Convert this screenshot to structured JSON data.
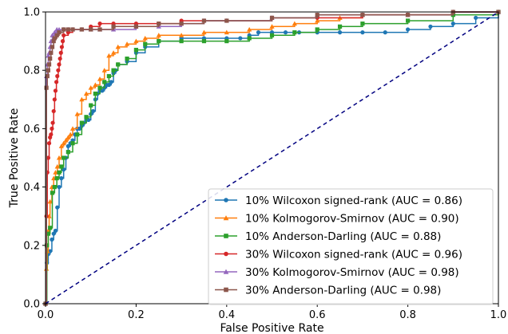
{
  "chart_data": {
    "type": "line",
    "title": "",
    "xlabel": "False Positive Rate",
    "ylabel": "True Positive Rate",
    "xlim": [
      0,
      1
    ],
    "ylim": [
      0,
      1
    ],
    "xticks": [
      "0.0",
      "0.2",
      "0.4",
      "0.6",
      "0.8",
      "1.0"
    ],
    "yticks": [
      "0.0",
      "0.2",
      "0.4",
      "0.6",
      "0.8",
      "1.0"
    ],
    "grid": false,
    "legend_position": "lower-right",
    "diagonal": {
      "x": [
        0,
        1
      ],
      "y": [
        0,
        1
      ],
      "color": "#000080",
      "style": "dashed"
    },
    "series": [
      {
        "name": "10% Wilcoxon signed-rank (AUC = 0.86)",
        "color": "#1f77b4",
        "marker": "circle",
        "x": [
          0,
          0.003,
          0.006,
          0.01,
          0.014,
          0.018,
          0.022,
          0.026,
          0.03,
          0.035,
          0.04,
          0.045,
          0.05,
          0.055,
          0.06,
          0.065,
          0.07,
          0.075,
          0.08,
          0.085,
          0.09,
          0.095,
          0.1,
          0.105,
          0.11,
          0.115,
          0.12,
          0.125,
          0.13,
          0.135,
          0.14,
          0.145,
          0.15,
          0.155,
          0.16,
          0.18,
          0.2,
          0.22,
          0.25,
          0.3,
          0.35,
          0.4,
          0.43,
          0.45,
          0.47,
          0.5,
          0.53,
          0.56,
          0.6,
          0.65,
          0.7,
          0.75,
          0.8,
          0.85,
          0.9,
          0.95,
          1.0
        ],
        "y": [
          0,
          0.14,
          0.17,
          0.18,
          0.22,
          0.24,
          0.25,
          0.33,
          0.4,
          0.43,
          0.46,
          0.5,
          0.54,
          0.55,
          0.56,
          0.58,
          0.6,
          0.6,
          0.61,
          0.62,
          0.63,
          0.63,
          0.65,
          0.66,
          0.7,
          0.72,
          0.73,
          0.73,
          0.74,
          0.75,
          0.75,
          0.76,
          0.79,
          0.8,
          0.82,
          0.83,
          0.86,
          0.88,
          0.9,
          0.91,
          0.91,
          0.91,
          0.91,
          0.92,
          0.93,
          0.93,
          0.93,
          0.93,
          0.93,
          0.93,
          0.93,
          0.93,
          0.94,
          0.95,
          0.96,
          0.98,
          1.0
        ]
      },
      {
        "name": "10% Kolmogorov-Smirnov (AUC = 0.90)",
        "color": "#ff7f0e",
        "marker": "triangle",
        "x": [
          0,
          0.002,
          0.004,
          0.006,
          0.008,
          0.01,
          0.014,
          0.018,
          0.022,
          0.026,
          0.03,
          0.035,
          0.04,
          0.045,
          0.05,
          0.055,
          0.06,
          0.07,
          0.08,
          0.09,
          0.1,
          0.11,
          0.12,
          0.13,
          0.14,
          0.15,
          0.16,
          0.18,
          0.2,
          0.22,
          0.25,
          0.3,
          0.35,
          0.4,
          0.45,
          0.5,
          0.55,
          0.6,
          0.65,
          0.7,
          0.8,
          0.9,
          1.0
        ],
        "y": [
          0,
          0.12,
          0.18,
          0.25,
          0.3,
          0.35,
          0.4,
          0.43,
          0.45,
          0.47,
          0.5,
          0.54,
          0.55,
          0.56,
          0.57,
          0.58,
          0.6,
          0.65,
          0.7,
          0.72,
          0.74,
          0.75,
          0.77,
          0.8,
          0.85,
          0.86,
          0.88,
          0.89,
          0.9,
          0.91,
          0.92,
          0.92,
          0.93,
          0.93,
          0.94,
          0.95,
          0.96,
          0.97,
          0.98,
          0.99,
          0.99,
          1.0,
          1.0
        ]
      },
      {
        "name": "10% Anderson-Darling (AUC = 0.88)",
        "color": "#2ca02c",
        "marker": "square",
        "x": [
          0,
          0.003,
          0.006,
          0.01,
          0.015,
          0.02,
          0.025,
          0.03,
          0.035,
          0.04,
          0.05,
          0.06,
          0.07,
          0.08,
          0.09,
          0.1,
          0.11,
          0.12,
          0.13,
          0.14,
          0.15,
          0.16,
          0.18,
          0.2,
          0.22,
          0.25,
          0.3,
          0.35,
          0.4,
          0.45,
          0.5,
          0.55,
          0.6,
          0.65,
          0.7,
          0.8,
          0.9,
          1.0
        ],
        "y": [
          0,
          0.2,
          0.24,
          0.26,
          0.38,
          0.4,
          0.43,
          0.45,
          0.47,
          0.5,
          0.52,
          0.55,
          0.58,
          0.62,
          0.64,
          0.68,
          0.72,
          0.74,
          0.76,
          0.78,
          0.8,
          0.82,
          0.84,
          0.87,
          0.89,
          0.9,
          0.9,
          0.9,
          0.9,
          0.91,
          0.92,
          0.93,
          0.94,
          0.95,
          0.96,
          0.97,
          0.99,
          1.0
        ]
      },
      {
        "name": "30% Wilcoxon signed-rank (AUC = 0.96)",
        "color": "#d62728",
        "marker": "circle",
        "x": [
          0,
          0.002,
          0.004,
          0.006,
          0.008,
          0.01,
          0.012,
          0.014,
          0.016,
          0.018,
          0.02,
          0.022,
          0.024,
          0.026,
          0.028,
          0.03,
          0.032,
          0.034,
          0.036,
          0.038,
          0.04,
          0.05,
          0.06,
          0.08,
          0.1,
          0.12,
          0.15,
          0.2,
          0.25,
          0.3,
          0.4,
          0.5,
          0.6,
          0.7,
          0.8,
          0.9,
          1.0
        ],
        "y": [
          0,
          0.3,
          0.45,
          0.5,
          0.55,
          0.57,
          0.58,
          0.6,
          0.62,
          0.66,
          0.7,
          0.73,
          0.76,
          0.78,
          0.8,
          0.82,
          0.84,
          0.86,
          0.88,
          0.9,
          0.92,
          0.93,
          0.94,
          0.94,
          0.95,
          0.96,
          0.96,
          0.96,
          0.96,
          0.97,
          0.97,
          0.98,
          0.98,
          0.99,
          0.99,
          1.0,
          1.0
        ]
      },
      {
        "name": "30% Kolmogorov-Smirnov (AUC = 0.98)",
        "color": "#9467bd",
        "marker": "triangle",
        "x": [
          0,
          0.002,
          0.004,
          0.006,
          0.008,
          0.01,
          0.012,
          0.015,
          0.02,
          0.025,
          0.03,
          0.04,
          0.05,
          0.06,
          0.08,
          0.1,
          0.12,
          0.15,
          0.2,
          0.25,
          0.3,
          0.35,
          0.4,
          0.5,
          0.6,
          0.7,
          0.8,
          0.9,
          1.0
        ],
        "y": [
          0,
          0.78,
          0.82,
          0.85,
          0.86,
          0.88,
          0.9,
          0.92,
          0.93,
          0.94,
          0.94,
          0.94,
          0.94,
          0.94,
          0.94,
          0.94,
          0.94,
          0.94,
          0.95,
          0.95,
          0.96,
          0.97,
          0.97,
          0.98,
          0.99,
          0.99,
          0.99,
          1.0,
          1.0
        ]
      },
      {
        "name": "30% Anderson-Darling (AUC = 0.98)",
        "color": "#8c564b",
        "marker": "square",
        "x": [
          0,
          0.002,
          0.004,
          0.006,
          0.008,
          0.01,
          0.012,
          0.015,
          0.018,
          0.02,
          0.025,
          0.03,
          0.04,
          0.05,
          0.06,
          0.08,
          0.1,
          0.12,
          0.15,
          0.2,
          0.25,
          0.3,
          0.35,
          0.4,
          0.5,
          0.6,
          0.7,
          0.8,
          0.9,
          1.0
        ],
        "y": [
          0,
          0.74,
          0.78,
          0.8,
          0.82,
          0.84,
          0.86,
          0.88,
          0.9,
          0.91,
          0.92,
          0.93,
          0.94,
          0.94,
          0.94,
          0.94,
          0.94,
          0.94,
          0.95,
          0.95,
          0.96,
          0.96,
          0.97,
          0.97,
          0.98,
          0.99,
          0.99,
          0.99,
          1.0,
          1.0
        ]
      }
    ]
  }
}
